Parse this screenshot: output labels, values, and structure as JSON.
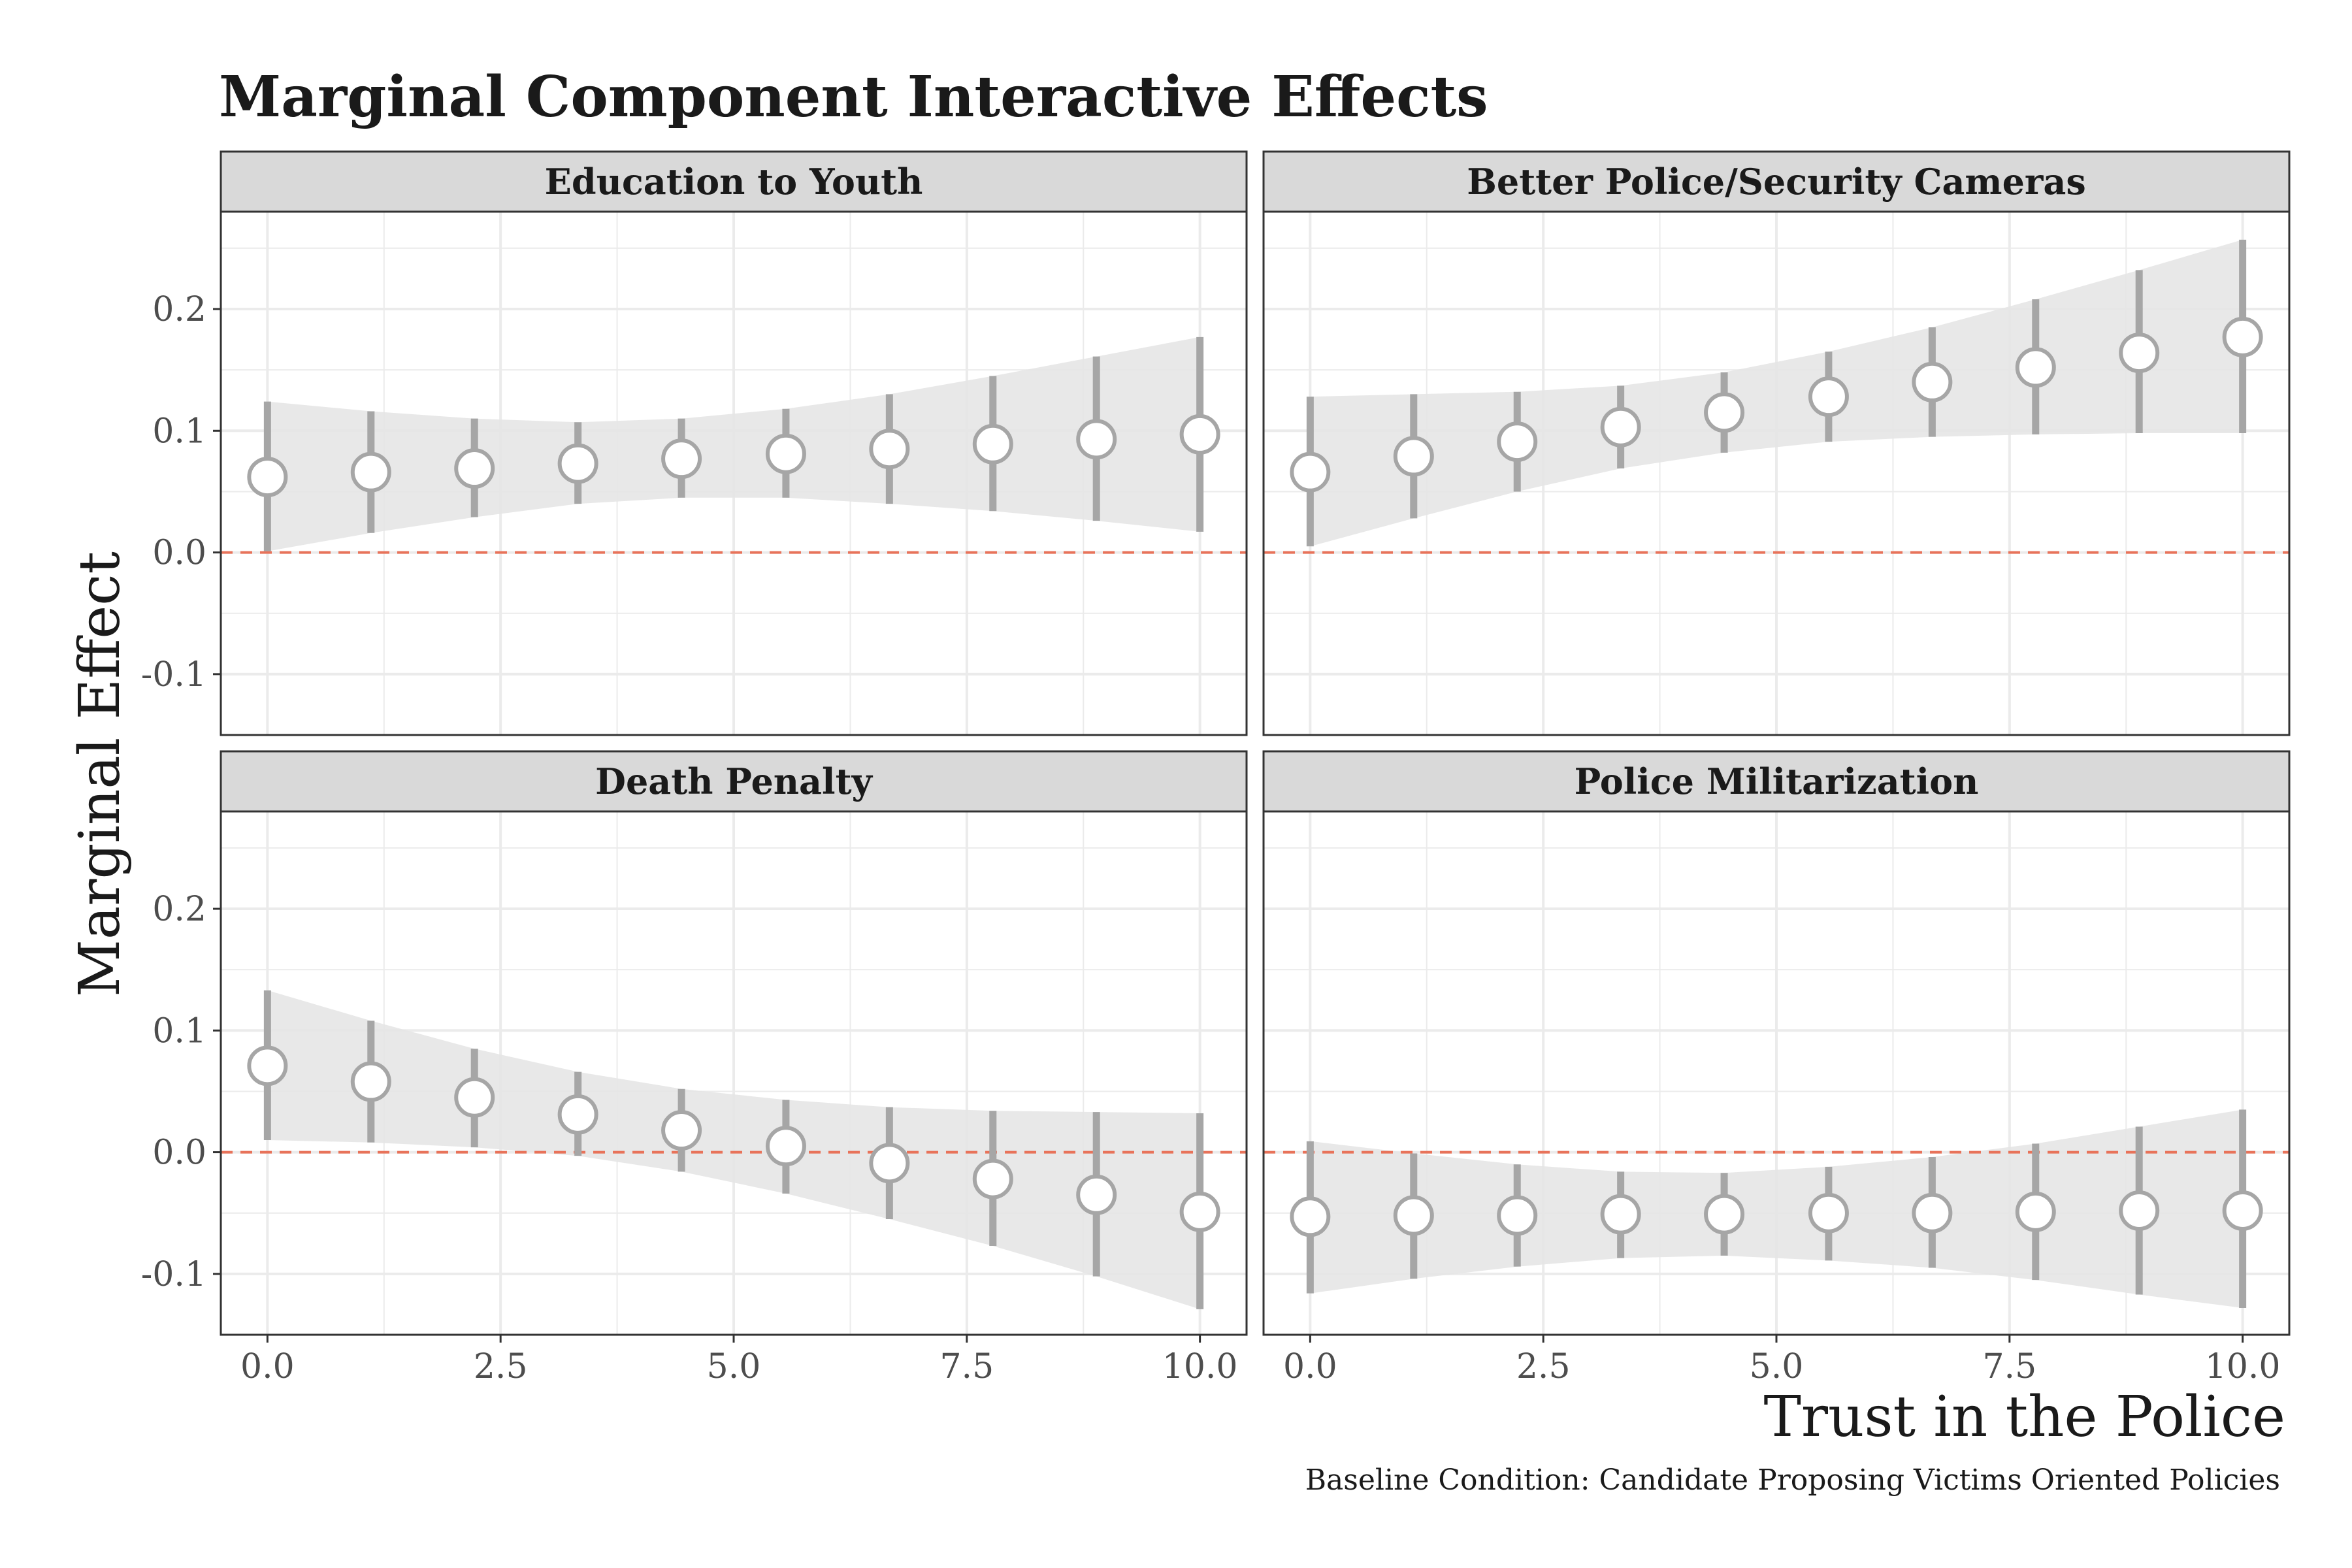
{
  "chart_data": {
    "type": "scatter",
    "title": "Marginal Component Interactive Effects",
    "xlabel": "Trust in the Police",
    "ylabel": "Marginal Effect",
    "caption": "Baseline Condition: Candidate Proposing Victims Oriented Policies",
    "xlim": [
      -0.5,
      10.5
    ],
    "ylim": [
      -0.15,
      0.28
    ],
    "x_ticks": [
      0,
      2.5,
      5,
      7.5,
      10
    ],
    "x_tick_labels": [
      "0.0",
      "2.5",
      "5.0",
      "7.5",
      "10.0"
    ],
    "y_ticks": [
      -0.1,
      0,
      0.1,
      0.2
    ],
    "y_tick_labels": [
      "-0.1",
      "0.0",
      "0.1",
      "0.2"
    ],
    "reference_line": 0,
    "grid": true,
    "colors": {
      "point_fill": "#ffffff",
      "point_stroke": "#a6a6a6",
      "errorbar": "#a6a6a6",
      "ribbon": "#e6e6e6",
      "reference_line": "#e8735a",
      "strip_fill": "#d9d9d9",
      "grid": "#ebebeb"
    },
    "panels": [
      {
        "label": "Education to Youth",
        "x": [
          0,
          1.11,
          2.22,
          3.33,
          4.44,
          5.56,
          6.67,
          7.78,
          8.89,
          10
        ],
        "y": [
          0.062,
          0.066,
          0.069,
          0.073,
          0.077,
          0.081,
          0.085,
          0.089,
          0.093,
          0.097
        ],
        "lower": [
          0.001,
          0.016,
          0.029,
          0.04,
          0.045,
          0.045,
          0.04,
          0.034,
          0.026,
          0.017
        ],
        "upper": [
          0.124,
          0.116,
          0.11,
          0.107,
          0.11,
          0.118,
          0.13,
          0.145,
          0.161,
          0.177
        ]
      },
      {
        "label": "Better Police/Security Cameras",
        "x": [
          0,
          1.11,
          2.22,
          3.33,
          4.44,
          5.56,
          6.67,
          7.78,
          8.89,
          10
        ],
        "y": [
          0.066,
          0.079,
          0.091,
          0.103,
          0.115,
          0.128,
          0.14,
          0.152,
          0.164,
          0.177
        ],
        "lower": [
          0.005,
          0.028,
          0.05,
          0.069,
          0.082,
          0.091,
          0.095,
          0.097,
          0.098,
          0.098
        ],
        "upper": [
          0.128,
          0.13,
          0.132,
          0.137,
          0.148,
          0.165,
          0.185,
          0.208,
          0.232,
          0.257
        ]
      },
      {
        "label": "Death Penalty",
        "x": [
          0,
          1.11,
          2.22,
          3.33,
          4.44,
          5.56,
          6.67,
          7.78,
          8.89,
          10
        ],
        "y": [
          0.071,
          0.058,
          0.045,
          0.031,
          0.018,
          0.005,
          -0.009,
          -0.022,
          -0.035,
          -0.049
        ],
        "lower": [
          0.01,
          0.008,
          0.004,
          -0.003,
          -0.016,
          -0.034,
          -0.055,
          -0.077,
          -0.102,
          -0.129
        ],
        "upper": [
          0.133,
          0.108,
          0.085,
          0.066,
          0.052,
          0.043,
          0.037,
          0.034,
          0.033,
          0.032
        ]
      },
      {
        "label": "Police Militarization",
        "x": [
          0,
          1.11,
          2.22,
          3.33,
          4.44,
          5.56,
          6.67,
          7.78,
          8.89,
          10
        ],
        "y": [
          -0.053,
          -0.052,
          -0.052,
          -0.051,
          -0.051,
          -0.05,
          -0.05,
          -0.049,
          -0.048,
          -0.048
        ],
        "lower": [
          -0.116,
          -0.104,
          -0.094,
          -0.087,
          -0.085,
          -0.089,
          -0.095,
          -0.105,
          -0.117,
          -0.128
        ],
        "upper": [
          0.009,
          -0.001,
          -0.01,
          -0.016,
          -0.017,
          -0.012,
          -0.004,
          0.007,
          0.021,
          0.035
        ]
      }
    ]
  }
}
